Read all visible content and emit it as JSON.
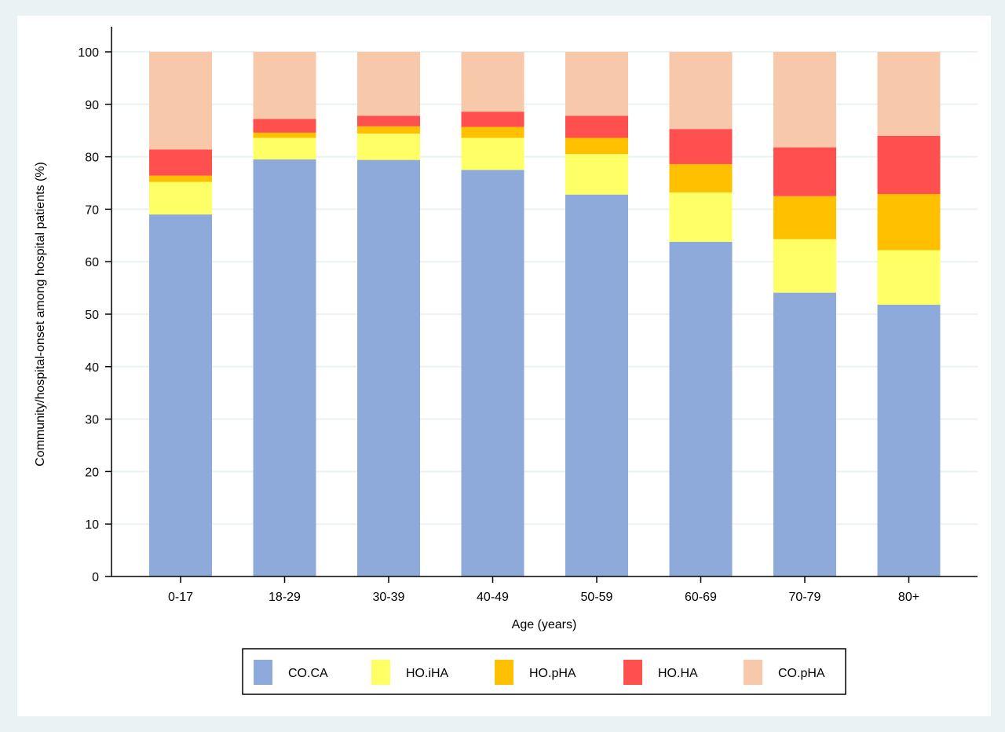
{
  "chart_data": {
    "type": "bar",
    "stacked": true,
    "percent": true,
    "xlabel": "Age (years)",
    "ylabel": "Community/hospital-onset among hospital patients (%)",
    "ylim": [
      0,
      100
    ],
    "yticks": [
      0,
      10,
      20,
      30,
      40,
      50,
      60,
      70,
      80,
      90,
      100
    ],
    "grid": true,
    "legend_position": "bottom",
    "categories": [
      "0-17",
      "18-29",
      "30-39",
      "40-49",
      "50-59",
      "60-69",
      "70-79",
      "80+"
    ],
    "series": [
      {
        "name": "CO.CA",
        "color": "#8eaadb",
        "values": [
          69.0,
          79.5,
          79.4,
          77.5,
          72.8,
          63.8,
          54.1,
          51.8
        ]
      },
      {
        "name": "HO.iHA",
        "color": "#ffff66",
        "values": [
          6.2,
          4.1,
          5.0,
          6.1,
          7.7,
          9.4,
          10.2,
          10.4
        ]
      },
      {
        "name": "HO.pHA",
        "color": "#ffc000",
        "values": [
          1.2,
          1.0,
          1.4,
          2.1,
          3.1,
          5.4,
          8.2,
          10.7
        ]
      },
      {
        "name": "HO.HA",
        "color": "#ff4f4f",
        "values": [
          5.0,
          2.6,
          2.0,
          2.9,
          4.2,
          6.7,
          9.3,
          11.1
        ]
      },
      {
        "name": "CO.pHA",
        "color": "#f8c8aa",
        "values": [
          18.6,
          12.8,
          12.2,
          11.4,
          12.2,
          14.7,
          18.2,
          16.0
        ]
      }
    ]
  }
}
